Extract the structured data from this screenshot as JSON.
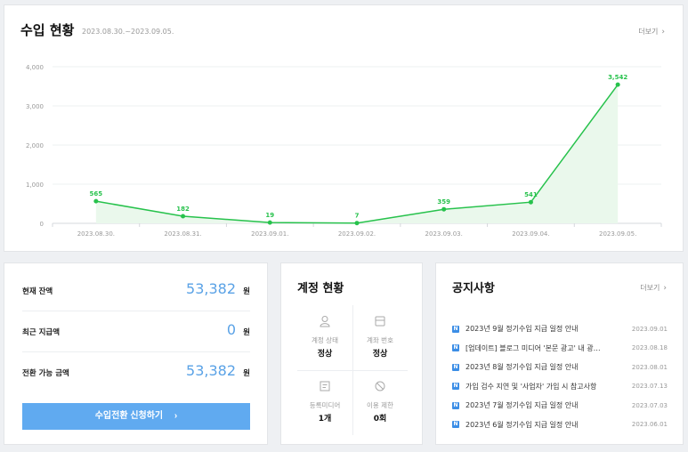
{
  "income": {
    "title": "수입 현황",
    "date_range": "2023.08.30.~2023.09.05.",
    "more_label": "더보기",
    "more_icon": "chevron-right-icon"
  },
  "chart_data": {
    "type": "area",
    "categories": [
      "2023.08.30.",
      "2023.08.31.",
      "2023.09.01.",
      "2023.09.02.",
      "2023.09.03.",
      "2023.09.04.",
      "2023.09.05."
    ],
    "values": [
      565,
      182,
      19,
      7,
      359,
      541,
      3542
    ],
    "value_labels": [
      "565",
      "182",
      "19",
      "7",
      "359",
      "541",
      "3,542"
    ],
    "y_ticks": [
      0,
      1000,
      2000,
      3000,
      4000
    ],
    "y_tick_labels": [
      "0",
      "1,000",
      "2,000",
      "3,000",
      "4,000"
    ],
    "ylim": [
      0,
      4000
    ],
    "grid": true,
    "line_color": "#27c24c",
    "fill_color": "#eaf8ec"
  },
  "balance": {
    "rows": [
      {
        "label": "현재 잔액",
        "amount": "53,382",
        "unit": "원"
      },
      {
        "label": "최근 지급액",
        "amount": "0",
        "unit": "원"
      },
      {
        "label": "전환 가능 금액",
        "amount": "53,382",
        "unit": "원"
      }
    ],
    "cta_label": "수입전환 신청하기",
    "cta_icon": "chevron-right-icon",
    "accent": "#60aaf0"
  },
  "account": {
    "title": "계정 현황",
    "cells": [
      {
        "icon": "user-icon",
        "label": "계정 상태",
        "value": "정상"
      },
      {
        "icon": "card-icon",
        "label": "계좌 번호",
        "value": "정상"
      },
      {
        "icon": "document-icon",
        "label": "등록미디어",
        "value": "1개"
      },
      {
        "icon": "block-icon",
        "label": "이용 제한",
        "value": "0회"
      }
    ]
  },
  "notice": {
    "title": "공지사항",
    "more_label": "더보기",
    "badge": "N",
    "items": [
      {
        "title": "2023년 9월 정기수입 지급 일정 안내",
        "date": "2023.09.01"
      },
      {
        "title": "[업데이트] 블로그 미디어 '본문 광고' 내 광…",
        "date": "2023.08.18"
      },
      {
        "title": "2023년 8월 정기수입 지급 일정 안내",
        "date": "2023.08.01"
      },
      {
        "title": "가입 검수 지연 및 '사업자' 가입 시 참고사항",
        "date": "2023.07.13"
      },
      {
        "title": "2023년 7월 정기수입 지급 일정 안내",
        "date": "2023.07.03"
      },
      {
        "title": "2023년 6월 정기수입 지급 일정 안내",
        "date": "2023.06.01"
      }
    ]
  }
}
